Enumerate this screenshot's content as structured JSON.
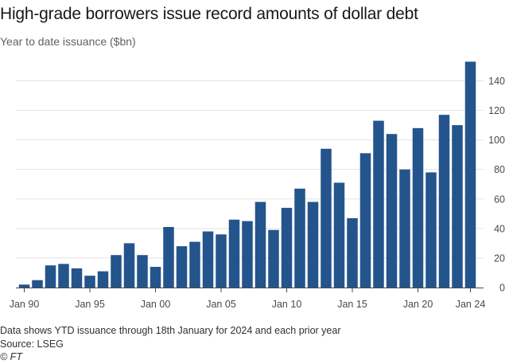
{
  "header": {
    "title": "High-grade borrowers issue record amounts of dollar debt",
    "subtitle": "Year to date issuance ($bn)"
  },
  "footer": {
    "note": "Data shows YTD issuance through 18th January for 2024 and each prior year",
    "source": "Source: LSEG",
    "credit": "© FT"
  },
  "colors": {
    "bar": "#24548c",
    "grid": "#e6e2df",
    "baseline": "#4d4845"
  },
  "chart_data": {
    "type": "bar",
    "title": "High-grade borrowers issue record amounts of dollar debt",
    "subtitle": "Year to date issuance ($bn)",
    "xlabel": "",
    "ylabel": "",
    "x_tick_labels": [
      "Jan 90",
      "Jan 95",
      "Jan 00",
      "Jan 05",
      "Jan 10",
      "Jan 15",
      "Jan 20",
      "Jan 24"
    ],
    "y_ticks": [
      0,
      20,
      40,
      60,
      80,
      100,
      120,
      140
    ],
    "y_axis_side": "right",
    "ylim": [
      0,
      150
    ],
    "grid": true,
    "categories": [
      "1990",
      "1991",
      "1992",
      "1993",
      "1994",
      "1995",
      "1996",
      "1997",
      "1998",
      "1999",
      "2000",
      "2001",
      "2002",
      "2003",
      "2004",
      "2005",
      "2006",
      "2007",
      "2008",
      "2009",
      "2010",
      "2011",
      "2012",
      "2013",
      "2014",
      "2015",
      "2016",
      "2017",
      "2018",
      "2019",
      "2020",
      "2021",
      "2022",
      "2023",
      "2024"
    ],
    "values": [
      2,
      5,
      15,
      16,
      13,
      8,
      11,
      22,
      30,
      22,
      14,
      41,
      28,
      31,
      38,
      36,
      46,
      45,
      58,
      39,
      54,
      67,
      58,
      94,
      71,
      47,
      91,
      113,
      104,
      80,
      108,
      78,
      117,
      110,
      153
    ]
  }
}
